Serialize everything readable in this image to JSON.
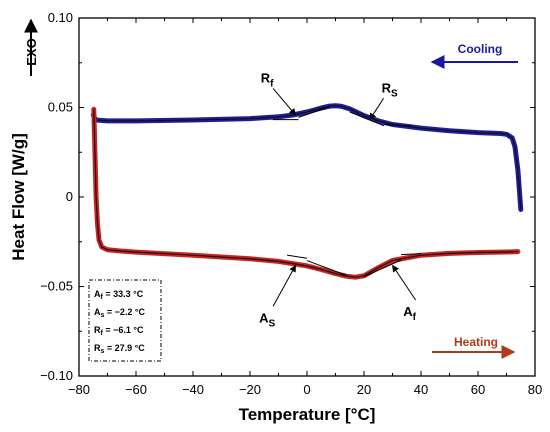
{
  "chart_data": {
    "type": "line",
    "xlabel": "Temperature [°C]",
    "ylabel": "Heat Flow [W/g]",
    "exo_label": "EXO",
    "xlim": [
      -80,
      80
    ],
    "ylim": [
      -0.1,
      0.1
    ],
    "x_ticks": [
      -80,
      -60,
      -40,
      -20,
      0,
      20,
      40,
      60,
      80
    ],
    "y_ticks": [
      -0.1,
      -0.05,
      0,
      0.05,
      0.1
    ],
    "x_tick_labels": [
      "−80",
      "−60",
      "−40",
      "−20",
      "0",
      "20",
      "40",
      "60",
      "80"
    ],
    "y_tick_labels": [
      "−0.10",
      "−0.05",
      "0",
      "0.05",
      "0.10"
    ],
    "grid": false,
    "series": [
      {
        "name": "Cooling",
        "color": "#1f1f9e",
        "x": [
          -75,
          -74.5,
          -74,
          -70,
          -60,
          -40,
          -20,
          -10,
          -5,
          0,
          5,
          8,
          10,
          12,
          15,
          20,
          25,
          30,
          40,
          50,
          60,
          68,
          70,
          72,
          73,
          74,
          75
        ],
        "y": [
          0.046,
          0.044,
          0.043,
          0.0425,
          0.0425,
          0.043,
          0.0438,
          0.0448,
          0.0458,
          0.0475,
          0.0497,
          0.0508,
          0.051,
          0.0507,
          0.0492,
          0.0455,
          0.0425,
          0.0405,
          0.0385,
          0.037,
          0.036,
          0.0355,
          0.035,
          0.033,
          0.028,
          0.015,
          -0.007
        ]
      },
      {
        "name": "Heating",
        "color": "#cc2222",
        "x": [
          -74.8,
          -74.5,
          -74,
          -73.5,
          -73,
          -72,
          -70,
          -65,
          -60,
          -40,
          -20,
          -10,
          0,
          5,
          10,
          14,
          17,
          20,
          25,
          30,
          40,
          50,
          60,
          70,
          74
        ],
        "y": [
          0.049,
          0.03,
          0.0,
          -0.015,
          -0.024,
          -0.028,
          -0.0295,
          -0.0302,
          -0.0308,
          -0.0325,
          -0.0345,
          -0.036,
          -0.0385,
          -0.0405,
          -0.0428,
          -0.0443,
          -0.0448,
          -0.044,
          -0.0395,
          -0.0355,
          -0.0325,
          -0.0315,
          -0.031,
          -0.0307,
          -0.0305
        ]
      }
    ],
    "annotations": [
      {
        "id": "rf",
        "main": "R",
        "sub": "f",
        "x": -14,
        "y": 0.064
      },
      {
        "id": "rs",
        "main": "R",
        "sub": "S",
        "x": 29,
        "y": 0.0585
      },
      {
        "id": "as",
        "main": "A",
        "sub": "S",
        "x": -14,
        "y": -0.07
      },
      {
        "id": "af",
        "main": "A",
        "sub": "f",
        "x": 36,
        "y": -0.0665
      }
    ],
    "info_box": [
      "A",
      "f",
      " = 33.3 °C",
      "A",
      "s",
      " = −2.2 °C",
      "R",
      "f",
      " = −6.1 °C",
      "R",
      "s",
      " = 27.9 °C"
    ],
    "info_lines": [
      {
        "main": "A",
        "sub": "f",
        "rest": " = 33.3 °C"
      },
      {
        "main": "A",
        "sub": "s",
        "rest": " = −2.2 °C"
      },
      {
        "main": "R",
        "sub": "f",
        "rest": " = −6.1 °C"
      },
      {
        "main": "R",
        "sub": "s",
        "rest": " = 27.9 °C"
      }
    ],
    "legend": {
      "cooling_label": "Cooling",
      "heating_label": "Heating",
      "cooling_color": "#1a1aa0",
      "heating_color": "#b03a1a"
    }
  }
}
